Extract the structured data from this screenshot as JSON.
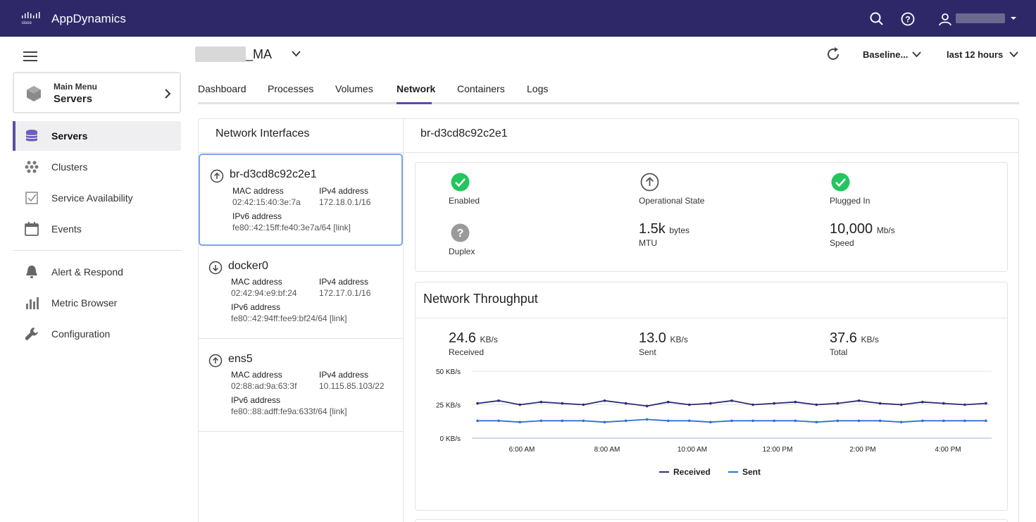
{
  "topbar": {
    "brand": "AppDynamics",
    "icons": [
      "search-icon",
      "help-icon",
      "user-icon"
    ]
  },
  "sidebar": {
    "main_menu": {
      "subtitle": "Main Menu",
      "title": "Servers"
    },
    "items": [
      {
        "label": "Servers",
        "icon": "servers-icon",
        "active": true
      },
      {
        "label": "Clusters",
        "icon": "clusters-icon"
      },
      {
        "label": "Service Availability",
        "icon": "service-availability-icon"
      },
      {
        "label": "Events",
        "icon": "calendar-icon"
      },
      {
        "label": "Alert & Respond",
        "icon": "bell-icon"
      },
      {
        "label": "Metric Browser",
        "icon": "bar-chart-icon"
      },
      {
        "label": "Configuration",
        "icon": "wrench-icon"
      }
    ]
  },
  "header": {
    "host_suffix": "_MA",
    "baseline": "Baseline...",
    "time_range": "last 12 hours"
  },
  "tabs": [
    {
      "label": "Dashboard"
    },
    {
      "label": "Processes"
    },
    {
      "label": "Volumes"
    },
    {
      "label": "Network",
      "active": true
    },
    {
      "label": "Containers"
    },
    {
      "label": "Logs"
    }
  ],
  "interfaces": {
    "heading": "Network Interfaces",
    "mac_label": "MAC address",
    "ipv4_label": "IPv4 address",
    "ipv6_label": "IPv6 address",
    "list": [
      {
        "name": "br-d3cd8c92c2e1",
        "direction": "up",
        "mac": "02:42:15:40:3e:7a",
        "ipv4": "172.18.0.1/16",
        "ipv6": "fe80::42:15ff:fe40:3e7a/64 [link]"
      },
      {
        "name": "docker0",
        "direction": "down",
        "mac": "02:42:94:e9:bf:24",
        "ipv4": "172.17.0.1/16",
        "ipv6": "fe80::42:94ff:fee9:bf24/64 [link]"
      },
      {
        "name": "ens5",
        "direction": "up",
        "mac": "02:88:ad:9a:63:3f",
        "ipv4": "10.115.85.103/22",
        "ipv6": "fe80::88:adff:fe9a:633f/64 [link]"
      }
    ]
  },
  "detail": {
    "title": "br-d3cd8c92c2e1",
    "status": {
      "enabled": "Enabled",
      "operational_state": "Operational State",
      "plugged_in": "Plugged In",
      "duplex": "Duplex",
      "mtu_value": "1.5k",
      "mtu_unit": "bytes",
      "mtu_label": "MTU",
      "speed_value": "10,000",
      "speed_unit": "Mb/s",
      "speed_label": "Speed"
    },
    "throughput": {
      "title": "Network Throughput",
      "received_value": "24.6",
      "received_label": "Received",
      "sent_value": "13.0",
      "sent_label": "Sent",
      "total_value": "37.6",
      "total_label": "Total",
      "unit": "KB/s"
    }
  },
  "colors": {
    "accent": "#5b4ca6",
    "received": "#2d2a7a",
    "sent": "#2f6fd6",
    "ok": "#22c55e"
  },
  "chart_data": {
    "type": "line",
    "ylim": [
      0,
      50
    ],
    "y_ticks": [
      "50 KB/s",
      "25 KB/s",
      "0 KB/s"
    ],
    "x_ticks": [
      "6:00 AM",
      "8:00 AM",
      "10:00 AM",
      "12:00 PM",
      "2:00 PM",
      "4:00 PM"
    ],
    "series": [
      {
        "name": "Received",
        "values": [
          26,
          28,
          25,
          27,
          26,
          25,
          28,
          26,
          24,
          27,
          25,
          26,
          28,
          25,
          26,
          27,
          25,
          26,
          28,
          26,
          25,
          27,
          26,
          25,
          26
        ]
      },
      {
        "name": "Sent",
        "values": [
          13,
          13,
          12,
          13,
          13,
          13,
          12,
          13,
          14,
          13,
          13,
          12,
          13,
          13,
          13,
          13,
          12,
          13,
          13,
          13,
          12,
          13,
          13,
          13,
          13
        ]
      }
    ],
    "legend": "bottom-center"
  }
}
